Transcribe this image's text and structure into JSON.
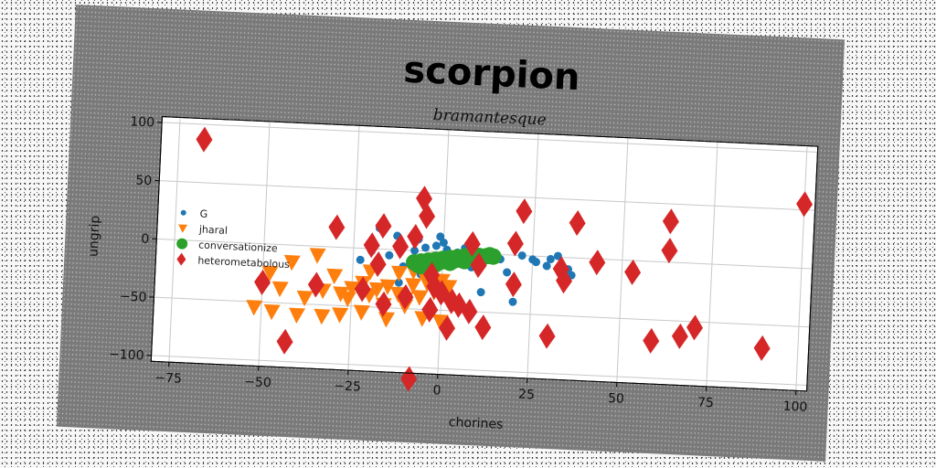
{
  "chart_data": {
    "type": "scatter",
    "title": "scorpion",
    "subtitle": "bramantesque",
    "xlabel": "chorines",
    "ylabel": "ungrip",
    "xlim": [
      -80,
      103
    ],
    "ylim": [
      -105,
      105
    ],
    "xticks": [
      -75,
      -50,
      -25,
      0,
      25,
      50,
      75,
      100
    ],
    "yticks": [
      -100,
      -50,
      0,
      50,
      100
    ],
    "grid": true,
    "legend_position": "center-left",
    "series": [
      {
        "name": "G",
        "marker": "circle-small",
        "color": "#1f77b4",
        "points": [
          [
            -18,
            18
          ],
          [
            -13,
            12
          ],
          [
            -7,
            10
          ],
          [
            -5,
            3
          ],
          [
            -1,
            13
          ],
          [
            -2,
            5
          ],
          [
            1,
            2
          ],
          [
            4,
            0
          ],
          [
            7,
            2
          ],
          [
            10,
            0
          ],
          [
            13,
            -5
          ],
          [
            14,
            -3
          ],
          [
            16,
            -4
          ],
          [
            18,
            -15
          ],
          [
            20,
            -40
          ],
          [
            22,
            0
          ],
          [
            25,
            -3
          ],
          [
            30,
            -2
          ],
          [
            32,
            1
          ],
          [
            35,
            -10
          ],
          [
            36,
            -15
          ],
          [
            -20,
            -2
          ],
          [
            -15,
            -5
          ],
          [
            -11,
            -14
          ],
          [
            -9,
            -10
          ],
          [
            -3,
            -8
          ],
          [
            2,
            -10
          ],
          [
            8,
            -12
          ],
          [
            11,
            -33
          ],
          [
            26,
            -5
          ],
          [
            29,
            -8
          ],
          [
            -23,
            -10
          ],
          [
            -12,
            -28
          ],
          [
            -6,
            -20
          ],
          [
            5,
            -5
          ],
          [
            -8,
            0
          ],
          [
            0,
            8
          ],
          [
            6,
            4
          ]
        ]
      },
      {
        "name": "jharal",
        "marker": "triangle-down",
        "color": "#ff7f0e",
        "points": [
          [
            -52,
            -55
          ],
          [
            -47,
            -58
          ],
          [
            -40,
            -60
          ],
          [
            -33,
            -60
          ],
          [
            -28,
            -58
          ],
          [
            -22,
            -55
          ],
          [
            -15,
            -60
          ],
          [
            -5,
            -58
          ],
          [
            0,
            -60
          ],
          [
            -38,
            -45
          ],
          [
            -33,
            -38
          ],
          [
            -28,
            -40
          ],
          [
            -25,
            -35
          ],
          [
            -22,
            -30
          ],
          [
            -20,
            -40
          ],
          [
            -18,
            -35
          ],
          [
            -15,
            -32
          ],
          [
            -12,
            -38
          ],
          [
            -10,
            -42
          ],
          [
            -8,
            -30
          ],
          [
            -6,
            -40
          ],
          [
            -4,
            -28
          ],
          [
            -2,
            -35
          ],
          [
            0,
            -25
          ],
          [
            2,
            -30
          ],
          [
            -30,
            -25
          ],
          [
            -35,
            -8
          ],
          [
            -20,
            -20
          ],
          [
            -12,
            -20
          ],
          [
            -8,
            -18
          ],
          [
            -5,
            -22
          ],
          [
            -26,
            -44
          ],
          [
            -16,
            -48
          ],
          [
            -10,
            -48
          ],
          [
            -45,
            -38
          ],
          [
            -48,
            -25
          ],
          [
            -42,
            -15
          ]
        ]
      },
      {
        "name": "conversationize",
        "marker": "circle-large",
        "color": "#2ca02c",
        "points": [
          [
            -8,
            -10
          ],
          [
            -7,
            -12
          ],
          [
            -6,
            -9
          ],
          [
            -5,
            -11
          ],
          [
            -4,
            -8
          ],
          [
            -3,
            -10
          ],
          [
            -2,
            -7
          ],
          [
            -1,
            -9
          ],
          [
            0,
            -6
          ],
          [
            1,
            -8
          ],
          [
            2,
            -5
          ],
          [
            3,
            -7
          ],
          [
            4,
            -4
          ],
          [
            5,
            -6
          ],
          [
            6,
            -3
          ],
          [
            7,
            -5
          ],
          [
            8,
            -3
          ],
          [
            9,
            -4
          ],
          [
            10,
            -2
          ],
          [
            11,
            -3
          ],
          [
            12,
            -2
          ],
          [
            13,
            -1
          ],
          [
            14,
            -2
          ],
          [
            -6,
            -13
          ],
          [
            -2,
            -11
          ],
          [
            2,
            -9
          ],
          [
            6,
            -7
          ],
          [
            10,
            -5
          ]
        ]
      },
      {
        "name": "heterometabolous",
        "marker": "diamond",
        "color": "#d62728",
        "points": [
          [
            -68,
            87
          ],
          [
            -30,
            17
          ],
          [
            -20,
            3
          ],
          [
            -18,
            -13
          ],
          [
            -17,
            20
          ],
          [
            -12,
            3
          ],
          [
            -8,
            12
          ],
          [
            -6,
            45
          ],
          [
            -5,
            30
          ],
          [
            -3,
            -20
          ],
          [
            -2,
            -30
          ],
          [
            0,
            -35
          ],
          [
            2,
            -65
          ],
          [
            3,
            -42
          ],
          [
            5,
            -45
          ],
          [
            8,
            -50
          ],
          [
            8,
            8
          ],
          [
            10,
            -10
          ],
          [
            12,
            -63
          ],
          [
            20,
            -25
          ],
          [
            20,
            10
          ],
          [
            22,
            38
          ],
          [
            30,
            -68
          ],
          [
            33,
            -10
          ],
          [
            34,
            -20
          ],
          [
            37,
            30
          ],
          [
            43,
            -3
          ],
          [
            53,
            -10
          ],
          [
            59,
            -68
          ],
          [
            63,
            10
          ],
          [
            63,
            35
          ],
          [
            67,
            -63
          ],
          [
            71,
            -55
          ],
          [
            90,
            -70
          ],
          [
            100,
            55
          ],
          [
            -43,
            -83
          ],
          [
            -35,
            -33
          ],
          [
            -8,
            -110
          ],
          [
            -16,
            -47
          ],
          [
            -10,
            -40
          ],
          [
            -22,
            -35
          ],
          [
            -50,
            -33
          ],
          [
            -3,
            -50
          ]
        ]
      }
    ]
  }
}
